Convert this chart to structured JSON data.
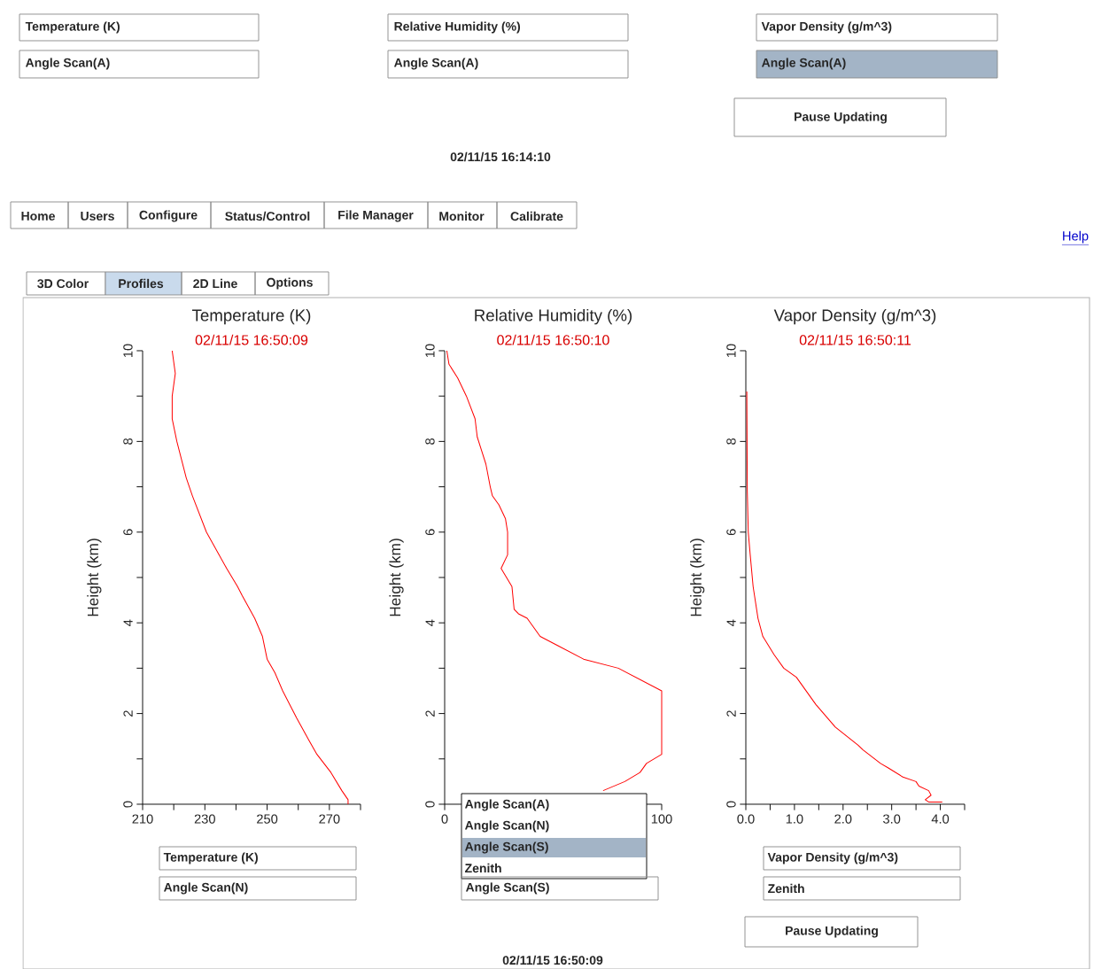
{
  "chart_data": [
    {
      "type": "line",
      "title": "Temperature (K)",
      "subtitle": "02/11/15 16:50:09",
      "ylabel": "Height (km)",
      "series": [
        {
          "color": "#ff0000",
          "x": [
            219.5,
            220.5,
            219.5,
            219.5,
            221,
            224,
            226,
            230.5,
            237,
            240.5,
            242,
            246,
            248.5,
            250,
            252.5,
            255,
            259.5,
            263.5,
            266,
            270.5,
            274,
            276,
            276
          ],
          "values": [
            10,
            9.5,
            9.0,
            8.5,
            8.0,
            7.2,
            6.8,
            6.0,
            5.2,
            4.8,
            4.6,
            4.1,
            3.7,
            3.2,
            2.9,
            2.5,
            1.9,
            1.4,
            1.1,
            0.7,
            0.3,
            0.1,
            0
          ]
        }
      ],
      "xlim": [
        210,
        280
      ],
      "xticks": [
        210,
        {
          "value": 220,
          "label": null
        },
        230,
        {
          "value": 240,
          "label": null
        },
        250,
        {
          "value": 260,
          "label": null
        },
        270,
        {
          "value": 280,
          "label": null
        }
      ],
      "ylim": [
        0,
        10
      ],
      "yticks": [
        0,
        {
          "value": 1,
          "label": null
        },
        2,
        {
          "value": 3,
          "label": null
        },
        4,
        {
          "value": 5,
          "label": null
        },
        6,
        {
          "value": 7,
          "label": null
        },
        8,
        {
          "value": 9,
          "label": null
        },
        10
      ]
    },
    {
      "type": "line",
      "title": "Relative Humidity (%)",
      "subtitle": "02/11/15 16:50:10",
      "ylabel": "Height (km)",
      "series": [
        {
          "color": "#ff0000",
          "x": [
            1,
            2,
            6,
            10,
            14,
            15,
            19,
            21,
            22,
            25,
            28,
            29,
            29,
            26,
            31,
            32,
            34,
            38,
            44,
            52,
            64,
            80,
            100,
            100,
            93,
            90,
            83,
            73
          ],
          "values": [
            10,
            9.7,
            9.4,
            9.0,
            8.5,
            8.1,
            7.5,
            7.0,
            6.8,
            6.6,
            6.3,
            6.0,
            5.5,
            5.2,
            4.8,
            4.3,
            4.2,
            4.1,
            3.7,
            3.5,
            3.2,
            3.0,
            2.5,
            1.1,
            0.9,
            0.7,
            0.5,
            0.3
          ]
        }
      ],
      "xlim": [
        0,
        100
      ],
      "xticks": [
        0,
        100
      ],
      "ylim": [
        0,
        10
      ],
      "yticks": [
        0,
        {
          "value": 1,
          "label": null
        },
        2,
        {
          "value": 3,
          "label": null
        },
        4,
        {
          "value": 5,
          "label": null
        },
        6,
        {
          "value": 7,
          "label": null
        },
        8,
        {
          "value": 9,
          "label": null
        },
        10
      ]
    },
    {
      "type": "line",
      "title": "Vapor Density (g/m^3)",
      "subtitle": "02/11/15 16:50:11",
      "ylabel": "Height (km)",
      "series": [
        {
          "color": "#ff0000",
          "x": [
            0.02,
            0.03,
            0.05,
            0.09,
            0.15,
            0.25,
            0.35,
            0.58,
            0.78,
            1.04,
            1.44,
            1.84,
            2.31,
            2.41,
            2.77,
            2.93,
            3.23,
            3.5,
            3.56,
            3.76,
            3.81,
            3.69,
            3.76,
            4.04
          ],
          "values": [
            9.1,
            6.9,
            6.0,
            5.5,
            4.8,
            4.1,
            3.7,
            3.3,
            3.0,
            2.8,
            2.2,
            1.7,
            1.3,
            1.2,
            0.9,
            0.8,
            0.6,
            0.5,
            0.4,
            0.3,
            0.2,
            0.1,
            0.05,
            0.05
          ]
        }
      ],
      "xlim": [
        0,
        4.5
      ],
      "xticks": [
        {
          "value": 0,
          "label": "0.0"
        },
        {
          "value": 0.5,
          "label": null
        },
        {
          "value": 1,
          "label": "1.0"
        },
        {
          "value": 1.5,
          "label": null
        },
        {
          "value": 2,
          "label": "2.0"
        },
        {
          "value": 2.5,
          "label": null
        },
        {
          "value": 3,
          "label": "3.0"
        },
        {
          "value": 3.5,
          "label": null
        },
        {
          "value": 4,
          "label": "4.0"
        },
        {
          "value": 4.5,
          "label": null
        }
      ],
      "ylim": [
        0,
        10
      ],
      "yticks": [
        0,
        {
          "value": 1,
          "label": null
        },
        2,
        {
          "value": 3,
          "label": null
        },
        4,
        {
          "value": 5,
          "label": null
        },
        6,
        {
          "value": 7,
          "label": null
        },
        8,
        {
          "value": 9,
          "label": null
        },
        10
      ]
    },
    {
      "type": "other",
      "annotations": [
        "Temperature (K)",
        "Angle Scan(A)",
        "Relative Humidity (%)",
        "Angle Scan(A)",
        "Vapor Density (g/m^3)",
        "Angle Scan(A)",
        "Pause Updating",
        "02/11/15 16:14:10",
        "Home",
        "Users",
        "Configure",
        "Status/Control",
        "File Manager",
        "Monitor",
        "Calibrate",
        "Help",
        "3D Color",
        "Profiles",
        "2D Line",
        "Options",
        "Temperature (K)",
        "Angle Scan(N)",
        "Angle Scan(A)",
        "Angle Scan(N)",
        "Angle Scan(S)",
        "Zenith",
        "Angle Scan(S)",
        "Vapor Density (g/m^3)",
        "Zenith",
        "Pause Updating",
        "02/11/15 16:50:09"
      ]
    }
  ]
}
